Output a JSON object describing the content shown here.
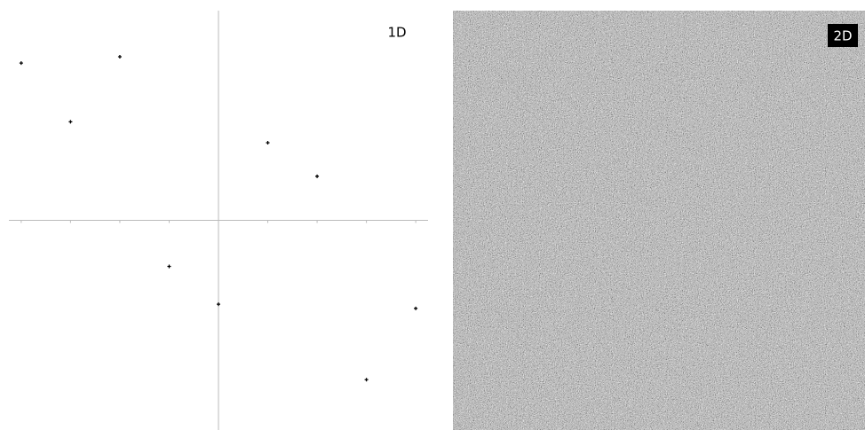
{
  "chart_data": [
    {
      "type": "scatter",
      "title": "1D",
      "x": [
        -4,
        -3,
        -2,
        -1,
        0,
        1,
        2,
        3,
        4
      ],
      "values": [
        0.75,
        0.47,
        0.78,
        -0.22,
        -0.4,
        0.37,
        0.21,
        -0.76,
        -0.42
      ],
      "color": "#000000",
      "xlim": [
        -4.25,
        4.25
      ],
      "ylim": [
        -1,
        1
      ],
      "xticks": [
        -4,
        -3,
        -2,
        -1,
        0,
        1,
        2,
        3,
        4
      ]
    },
    {
      "type": "noise",
      "title": "2D"
    }
  ]
}
